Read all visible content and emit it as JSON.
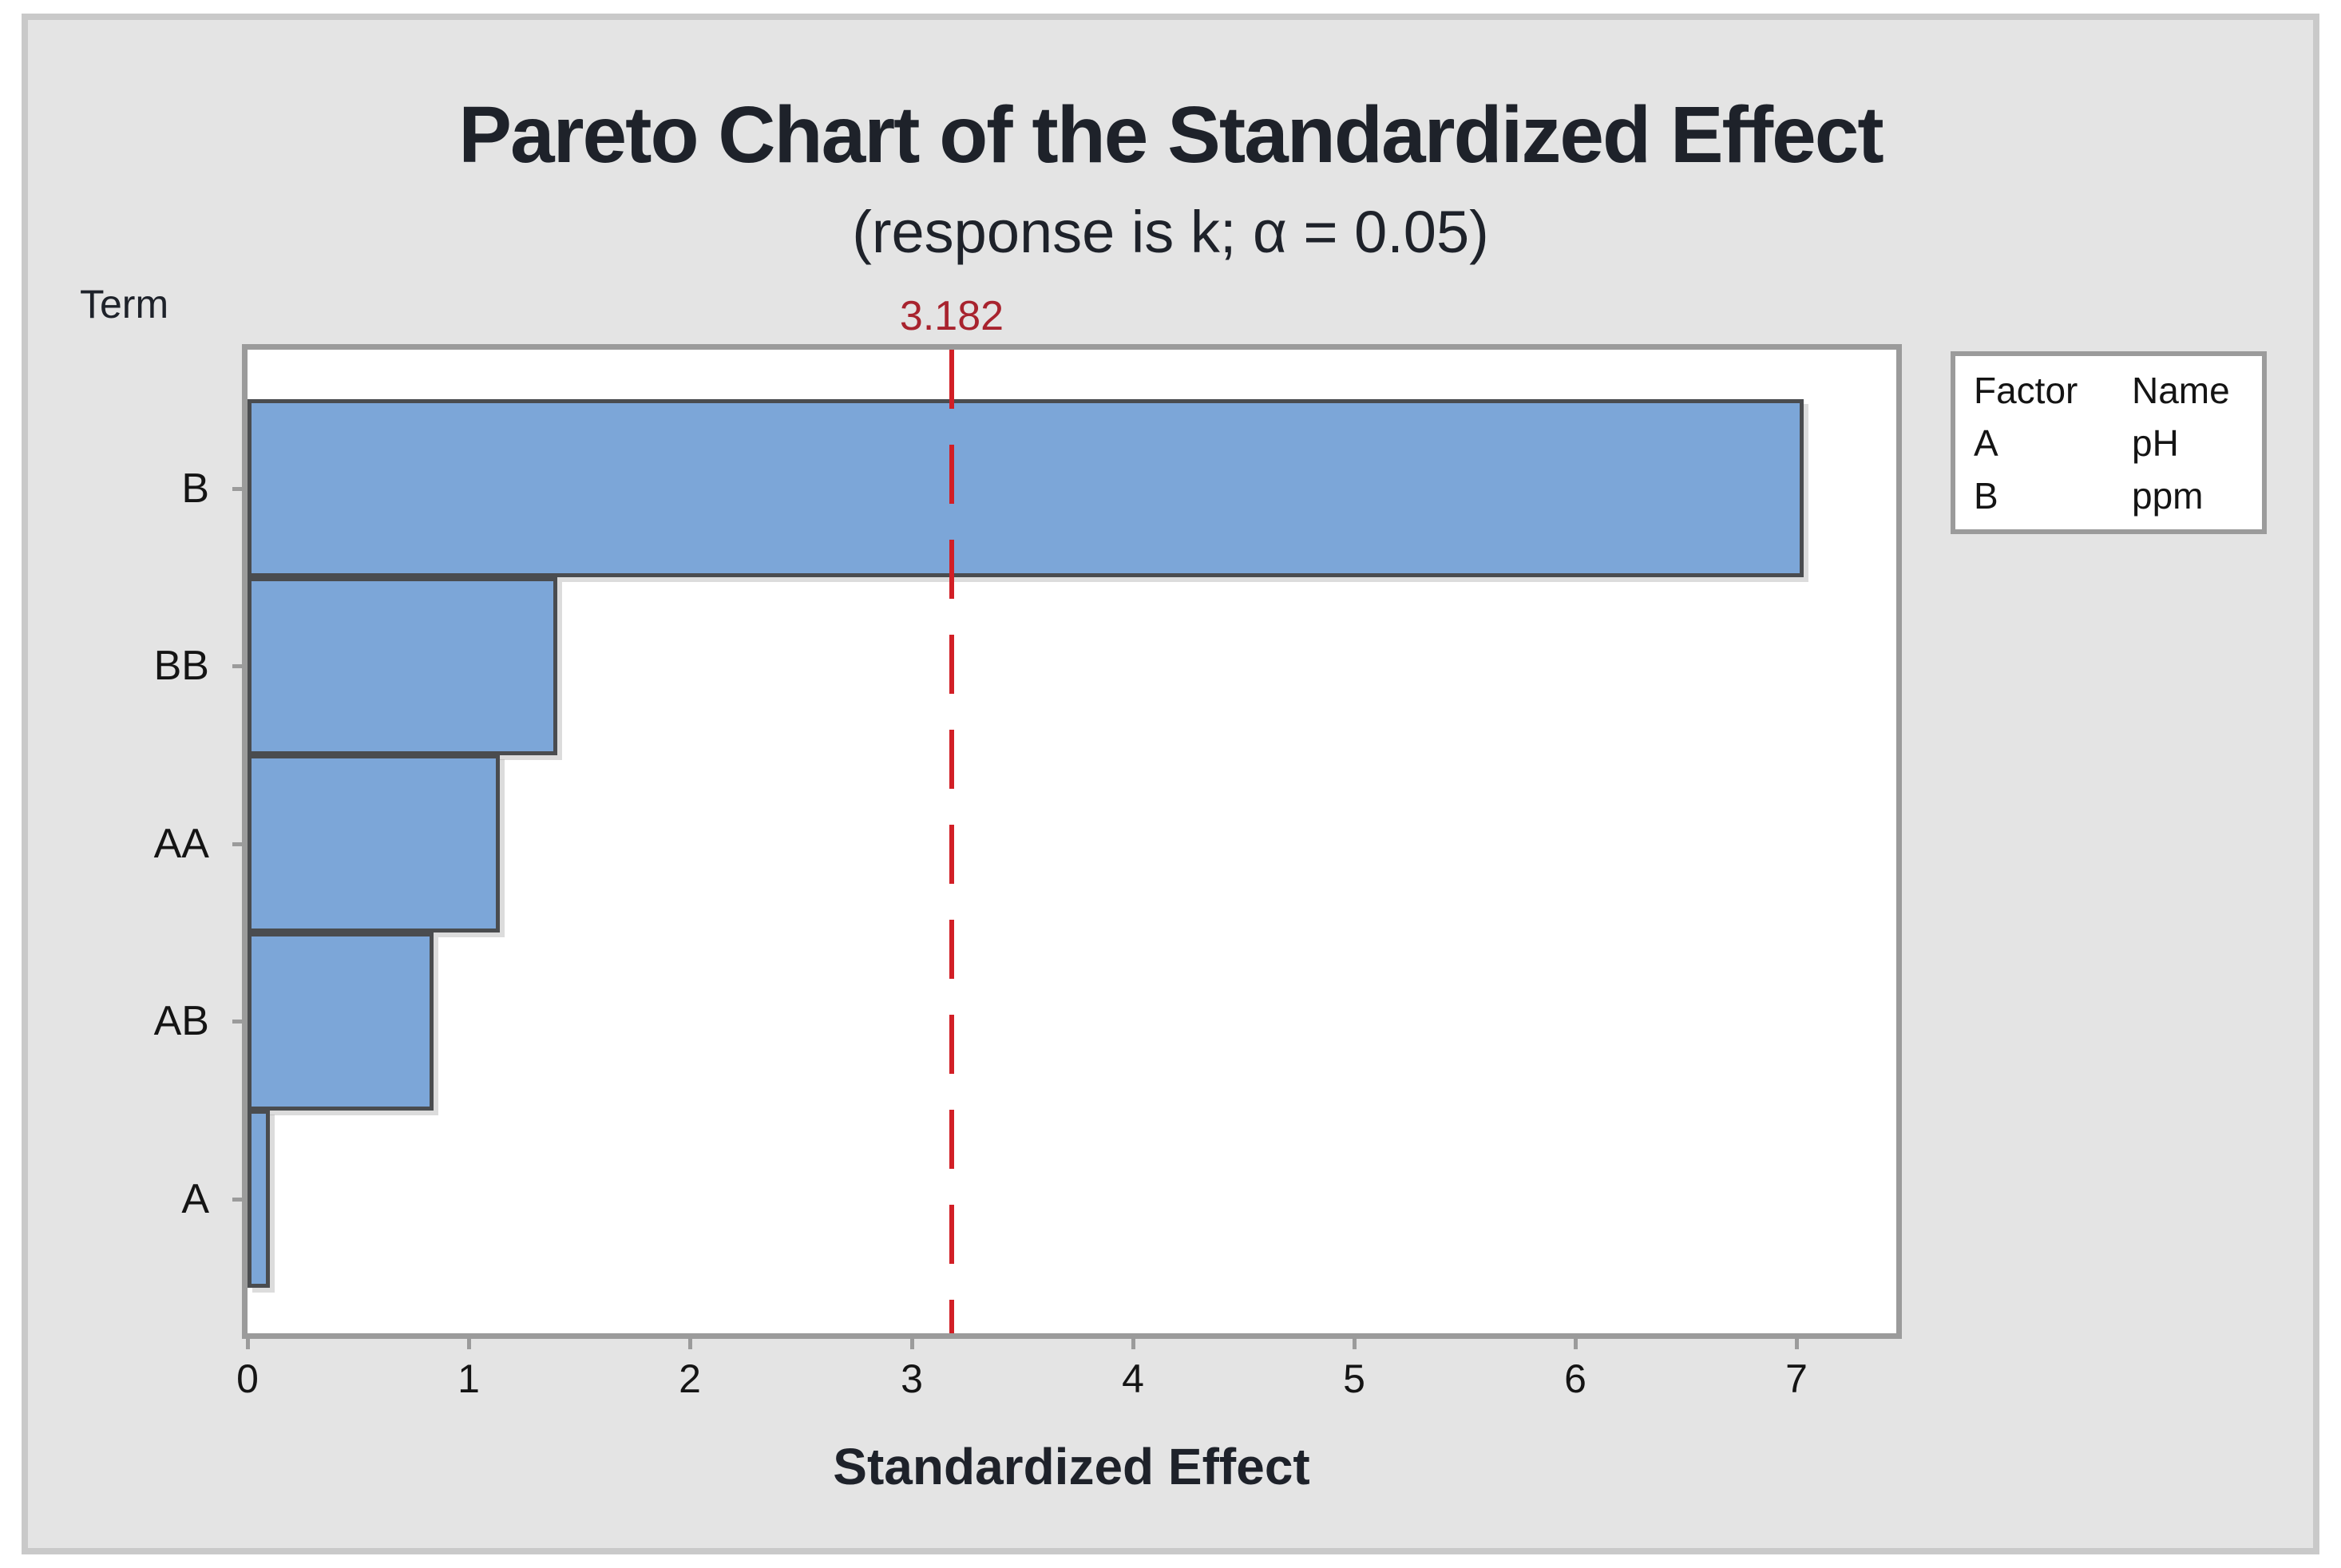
{
  "chart_data": {
    "type": "bar",
    "orientation": "horizontal",
    "title": "Pareto Chart of the Standardized Effect",
    "subtitle": "(response is k; α = 0.05)",
    "y_axis_title": "Term",
    "x_axis_title": "Standardized Effect",
    "categories": [
      "B",
      "BB",
      "AA",
      "AB",
      "A"
    ],
    "values": [
      7.02,
      1.39,
      1.13,
      0.83,
      0.09
    ],
    "x_ticks": [
      0,
      1,
      2,
      3,
      4,
      5,
      6,
      7
    ],
    "xlim": [
      0,
      7.45
    ],
    "grid": false,
    "reference_line": {
      "value": 3.182,
      "label": "3.182"
    },
    "legend_position": "right",
    "legend": {
      "headers": [
        "Factor",
        "Name"
      ],
      "rows": [
        [
          "A",
          "pH"
        ],
        [
          "B",
          "ppm"
        ]
      ]
    },
    "colors": {
      "bar_fill": "#7ca6d8",
      "bar_border": "#4a4c4f",
      "reference_line": "#d21f26",
      "reference_label": "#a8232e",
      "plot_background": "#ffffff",
      "canvas_background": "#e4e4e4",
      "frame_border": "#9b9b9b",
      "text": "#1e222a"
    }
  }
}
